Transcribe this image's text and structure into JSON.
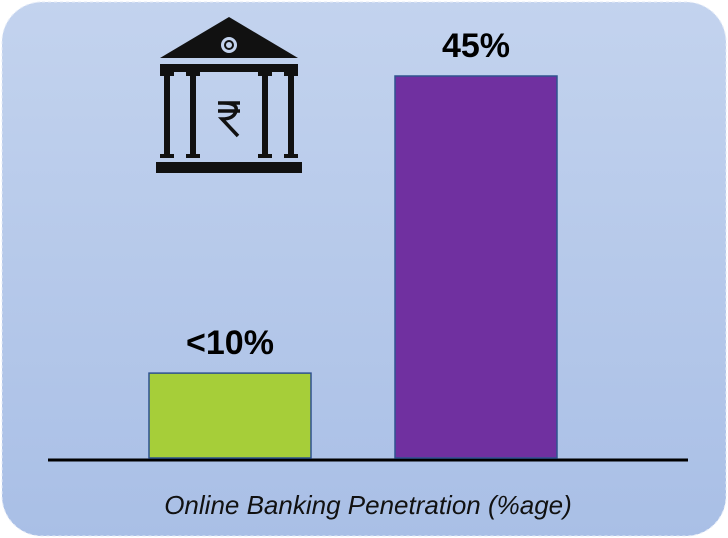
{
  "chart_data": {
    "type": "bar",
    "categories": [
      null,
      null
    ],
    "values": [
      10,
      45
    ],
    "value_labels": [
      "<10%",
      "45%"
    ],
    "colors": [
      "#a6ce39",
      "#7030a0"
    ],
    "xlabel": "Online Banking Penetration (%age)"
  }
}
